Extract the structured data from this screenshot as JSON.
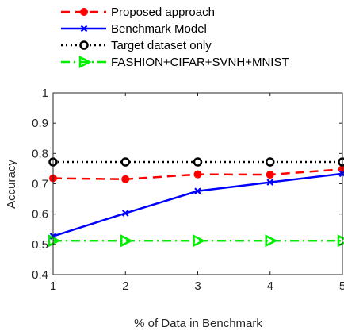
{
  "chart_data": {
    "type": "line",
    "title": "",
    "xlabel": "% of Data in Benchmark",
    "ylabel": "Accuracy",
    "x": [
      1,
      2,
      3,
      4,
      5
    ],
    "xlim": [
      1,
      5
    ],
    "ylim": [
      0.4,
      1
    ],
    "xticks": [
      "1",
      "2",
      "3",
      "4",
      "5"
    ],
    "yticks": [
      "0.4",
      "0.5",
      "0.6",
      "0.7",
      "0.8",
      "0.9",
      "1"
    ],
    "grid": false,
    "legend_position": "top, outside plot",
    "series": [
      {
        "name": "Proposed approach",
        "values": [
          0.718,
          0.715,
          0.731,
          0.73,
          0.748
        ],
        "color": "#ff0000",
        "line_style": "dashed",
        "marker": "filled-circle"
      },
      {
        "name": "Benchmark Model",
        "values": [
          0.527,
          0.603,
          0.676,
          0.705,
          0.733
        ],
        "color": "#0000ff",
        "line_style": "solid",
        "marker": "x"
      },
      {
        "name": "Target dataset only",
        "values": [
          0.772,
          0.772,
          0.772,
          0.772,
          0.772
        ],
        "color": "#000000",
        "line_style": "dotted",
        "marker": "open-circle"
      },
      {
        "name": "FASHION+CIFAR+SVNH+MNIST",
        "values": [
          0.512,
          0.512,
          0.512,
          0.512,
          0.512
        ],
        "color": "#00ee00",
        "line_style": "dash-dot",
        "marker": "triangle-right"
      }
    ]
  }
}
